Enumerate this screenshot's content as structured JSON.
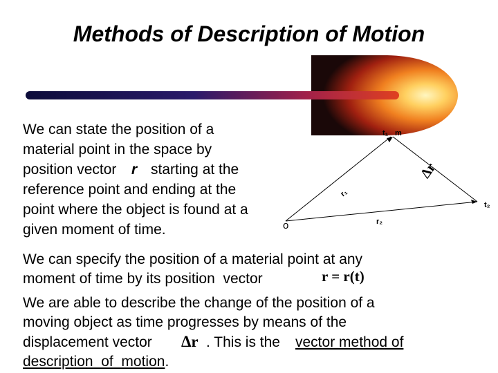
{
  "title": "Methods of Description of Motion",
  "paragraph1": {
    "line1": "We can state the position of a",
    "line2": "material point in the space by",
    "line3_before": "position vector",
    "line3_symbol": "r",
    "line3_after": "starting at the",
    "line4": "reference point and ending at the",
    "line5": "point where the object is found at a",
    "line6": "given moment of time."
  },
  "diagram": {
    "t1": "t₁",
    "m": "m",
    "delta_r": "Δr",
    "r1": "r₁",
    "r2": "r₂",
    "origin": "o",
    "t2": "t₂"
  },
  "paragraph2": {
    "line1": "We can specify the position of a material point at any",
    "line2": "moment of time by its position  vector",
    "formula": "r = r(t)"
  },
  "paragraph3": {
    "line1": "We are able to describe the change of the position of a",
    "line2": "moving object as time progresses by means of the",
    "line3_before": "displacement vector",
    "line3_symbol": "Δr",
    "line3_after": ". This is the",
    "line3_link": "vector method of",
    "line4_link": "description  of  motion",
    "line4_after": "."
  }
}
